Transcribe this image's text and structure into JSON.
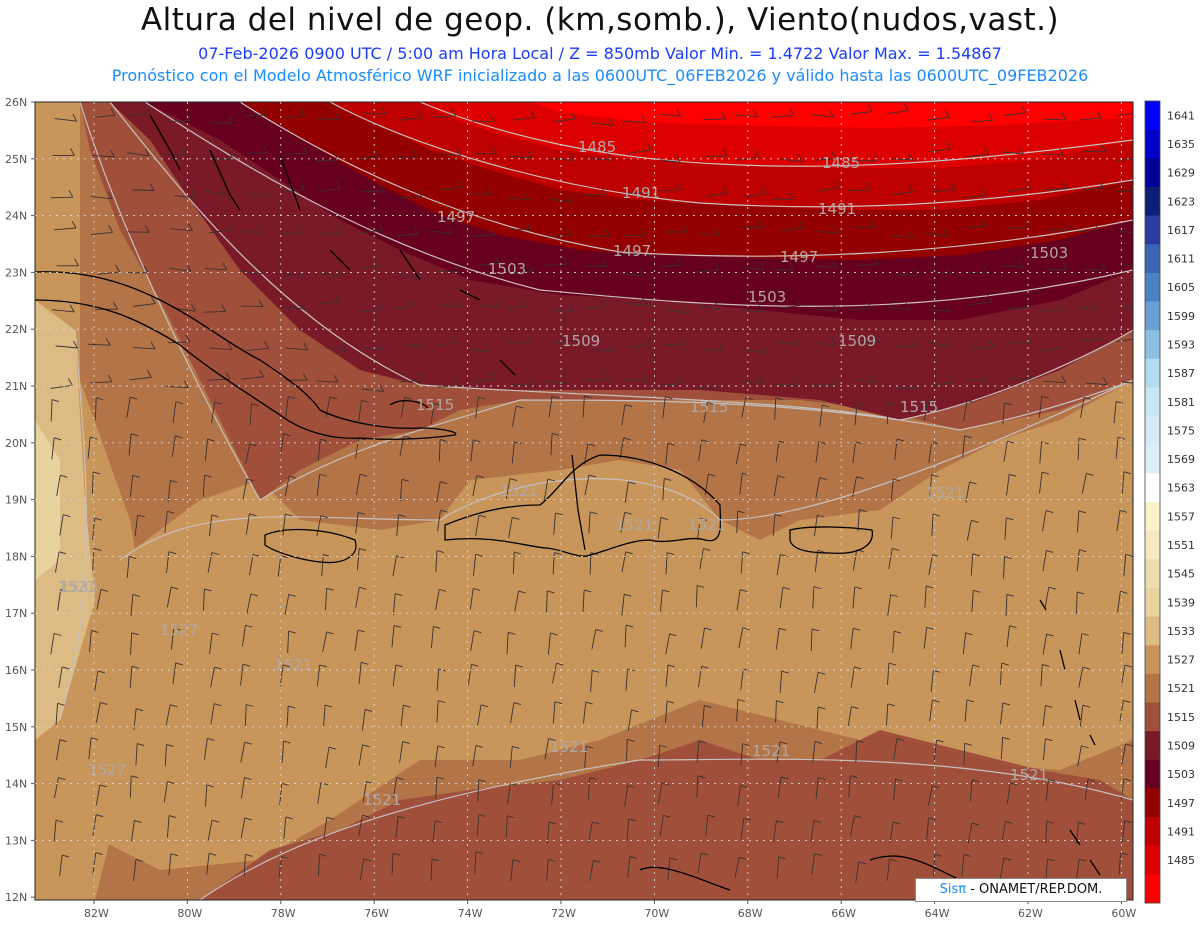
{
  "title": "Altura del nivel de geop. (km,somb.), Viento(nudos,vast.)",
  "line1": "07-Feb-2026  0900 UTC / 5:00 am Hora Local / Z = 850mb     Valor Min. = 1.4722  Valor Max. = 1.54867",
  "line2": "Pronóstico con el Modelo Atmosférico WRF inicializado a las 0600UTC_06FEB2026 y válido hasta las  0600UTC_09FEB2026",
  "credit": {
    "brand": "Sisπ",
    "rest": " - ONAMET/REP.DOM."
  },
  "lat_labels": [
    "26N",
    "25N",
    "24N",
    "23N",
    "22N",
    "21N",
    "20N",
    "19N",
    "18N",
    "17N",
    "16N",
    "15N",
    "14N",
    "13N",
    "12N"
  ],
  "lon_labels": [
    "82W",
    "80W",
    "78W",
    "76W",
    "74W",
    "72W",
    "70W",
    "68W",
    "66W",
    "64W",
    "62W",
    "60W"
  ],
  "colorbar": [
    {
      "label": "1641",
      "color": "#0000ff"
    },
    {
      "label": "1635",
      "color": "#0000c8"
    },
    {
      "label": "1629",
      "color": "#000096"
    },
    {
      "label": "1623",
      "color": "#0c1e78"
    },
    {
      "label": "1617",
      "color": "#2a3ca0"
    },
    {
      "label": "1611",
      "color": "#3a64b4"
    },
    {
      "label": "1605",
      "color": "#4a82c4"
    },
    {
      "label": "1599",
      "color": "#6aa0d2"
    },
    {
      "label": "1593",
      "color": "#8cc0e2"
    },
    {
      "label": "1587",
      "color": "#b4dcf0"
    },
    {
      "label": "1581",
      "color": "#c8e6f4"
    },
    {
      "label": "1575",
      "color": "#d4ecf8"
    },
    {
      "label": "1569",
      "color": "#dcf0fa"
    },
    {
      "label": "1563",
      "color": "#ffffff"
    },
    {
      "label": "1557",
      "color": "#fbf2cc"
    },
    {
      "label": "1551",
      "color": "#f5e8c2"
    },
    {
      "label": "1545",
      "color": "#eedcae"
    },
    {
      "label": "1539",
      "color": "#e8d29e"
    },
    {
      "label": "1533",
      "color": "#dcbc84"
    },
    {
      "label": "1527",
      "color": "#c8965a"
    },
    {
      "label": "1521",
      "color": "#b37448"
    },
    {
      "label": "1515",
      "color": "#a0503a"
    },
    {
      "label": "1509",
      "color": "#7a1a28"
    },
    {
      "label": "1503",
      "color": "#66001e"
    },
    {
      "label": "1497",
      "color": "#940000"
    },
    {
      "label": "1491",
      "color": "#be0000"
    },
    {
      "label": "1485",
      "color": "#dc0000"
    },
    {
      "label": "",
      "color": "#ff0000"
    }
  ],
  "contour_labels": [
    "1485",
    "1485",
    "1491",
    "1491",
    "1497",
    "1497",
    "1497",
    "1503",
    "1503",
    "1503",
    "1509",
    "1509",
    "1515",
    "1515",
    "1515",
    "1521",
    "1521",
    "1521",
    "1521",
    "1521",
    "1521",
    "1521",
    "1521",
    "1521",
    "1521",
    "1527",
    "1527",
    "1533"
  ]
}
